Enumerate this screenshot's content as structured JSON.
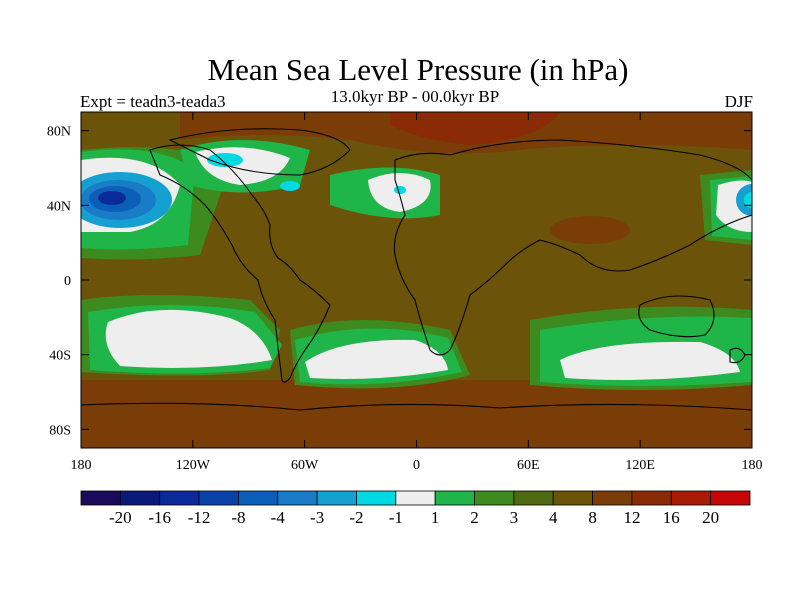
{
  "title": "Mean Sea Level Pressure (in hPa)",
  "subtitle": "13.0kyr BP - 00.0kyr BP",
  "left_label": "Expt = teadn3-teada3",
  "right_label": "DJF",
  "map": {
    "lon_range": [
      -180,
      180
    ],
    "lat_range": [
      -90,
      90
    ],
    "projection": "cylindrical-equidistant",
    "lat_ticks": [
      {
        "value": 80,
        "label": "80N"
      },
      {
        "value": 40,
        "label": "40N"
      },
      {
        "value": 0,
        "label": "0"
      },
      {
        "value": -40,
        "label": "40S"
      },
      {
        "value": -80,
        "label": "80S"
      }
    ],
    "lon_ticks": [
      {
        "value": -180,
        "label": "180"
      },
      {
        "value": -120,
        "label": "120W"
      },
      {
        "value": -60,
        "label": "60W"
      },
      {
        "value": 0,
        "label": "0"
      },
      {
        "value": 60,
        "label": "60E"
      },
      {
        "value": 120,
        "label": "120E"
      },
      {
        "value": 180,
        "label": "180"
      }
    ]
  },
  "colorbar": {
    "colors": [
      "#1a0a5c",
      "#0b1a7a",
      "#0a2a9a",
      "#0a43a8",
      "#0c5fb7",
      "#1a7cc6",
      "#16a0d2",
      "#00d8e4",
      "#eeeeee",
      "#1fb548",
      "#3d8a1e",
      "#4e6a10",
      "#6b5409",
      "#7a3d08",
      "#8a2a06",
      "#a81c06",
      "#c40606"
    ],
    "labels": [
      "-20",
      "-16",
      "-12",
      "-8",
      "-4",
      "-3",
      "-2",
      "-1",
      "1",
      "2",
      "3",
      "4",
      "8",
      "12",
      "16",
      "20"
    ]
  }
}
